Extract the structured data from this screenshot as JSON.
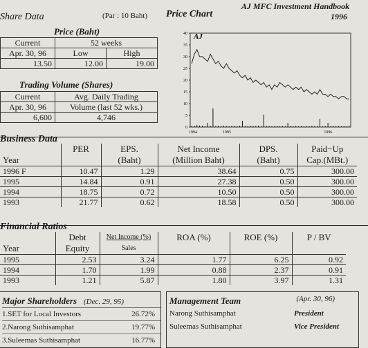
{
  "handbook": {
    "line1": "AJ MFC Investment Handbook",
    "line2": "1996"
  },
  "share": {
    "title": "Share Data",
    "par": "(Par : 10 Baht)"
  },
  "price": {
    "title": "Price (Baht)",
    "current": "Current",
    "date": "Apr. 30, 96",
    "weeks": "52 weeks",
    "low": "Low",
    "high": "High",
    "current_val": "13.50",
    "low_val": "12.00",
    "high_val": "19.00"
  },
  "volume": {
    "title": "Trading Volume (Shares)",
    "current": "Current",
    "date": "Apr. 30, 96",
    "avg1": "Avg. Daily Trading",
    "avg2": "Volume (last 52 wks.)",
    "current_val": "6,600",
    "avg_val": "4,746"
  },
  "chart_title": "Price Chart",
  "chart_data": {
    "type": "line",
    "title": "Price Chart",
    "series_label": "AJ",
    "ylim": [
      0,
      40
    ],
    "yticks": [
      "0",
      "5",
      "10",
      "15",
      "20",
      "25",
      "30",
      "35",
      "40"
    ],
    "xticks": [
      "1994",
      "1995",
      "1996"
    ],
    "price": [
      27,
      31,
      33,
      30,
      30,
      29,
      28,
      31,
      29,
      27,
      28,
      26,
      25,
      27,
      25,
      24,
      23,
      24,
      22,
      21,
      22,
      20,
      21,
      19,
      20,
      19,
      18,
      19,
      17,
      18,
      16,
      18,
      17,
      19,
      18,
      17,
      18,
      17,
      16,
      17,
      16,
      17,
      15,
      16,
      15,
      14,
      15,
      14,
      16,
      14,
      14,
      13,
      14,
      13,
      13,
      12,
      13,
      13,
      12,
      12
    ],
    "volume": [
      0.5,
      0.6,
      1,
      0.8,
      0.7,
      0.5,
      2,
      0.6,
      9,
      0.4,
      0.6,
      0.5,
      0.7,
      0.5,
      0.4,
      0.6,
      0.5,
      0.4,
      0.6,
      3,
      0.5,
      0.4,
      0.6,
      0.5,
      0.5,
      0.7,
      0.4,
      6,
      0.6,
      0.5,
      0.4,
      0.5,
      0.6,
      0.4,
      0.5,
      0.4,
      2,
      0.5,
      0.4,
      0.6,
      0.4,
      0.5,
      0.4,
      0.5,
      0.4,
      0.6,
      0.4,
      0.5,
      4,
      0.4,
      0.5,
      2,
      0.4,
      0.5,
      0.4,
      0.5,
      0.4,
      0.5,
      0.4,
      0.5
    ]
  },
  "business": {
    "title": "Business Data",
    "headers": [
      [
        "",
        "PER",
        "EPS.",
        "Net Income",
        "DPS.",
        "Paid−Up"
      ],
      [
        "Year",
        "",
        "(Baht)",
        "(Million Baht)",
        "(Baht)",
        "Cap.(MBt.)"
      ]
    ],
    "rows": [
      [
        "1996 F",
        "10.47",
        "1.29",
        "38.64",
        "0.75",
        "300.00"
      ],
      [
        "1995",
        "14.84",
        "0.91",
        "27.38",
        "0.50",
        "300.00"
      ],
      [
        "1994",
        "18.75",
        "0.72",
        "10.50",
        "0.50",
        "300.00"
      ],
      [
        "1993",
        "21.77",
        "0.62",
        "18.58",
        "0.50",
        "300.00"
      ]
    ]
  },
  "ratios": {
    "title": "Financial Ratios",
    "h_debt": "Debt",
    "h_equity": "Equity",
    "h_ni": "Net Income (%)",
    "h_sales": "Sales",
    "h_roa": "ROA (%)",
    "h_roe": "ROE (%)",
    "h_pbv": "P / BV",
    "h_year": "Year",
    "rows": [
      [
        "1995",
        "2.53",
        "3.24",
        "1.77",
        "6.25",
        "0.92"
      ],
      [
        "1994",
        "1.70",
        "1.99",
        "0.88",
        "2.37",
        "0.91"
      ],
      [
        "1993",
        "1.21",
        "5.87",
        "1.80",
        "3.97",
        "1.31"
      ]
    ]
  },
  "shareholders": {
    "title": "Major Shareholders",
    "date": "(Dec. 29, 95)",
    "items": [
      {
        "name": "1.SET for Local Investors",
        "pct": "26.72%"
      },
      {
        "name": "2.Narong Suthisamphat",
        "pct": "19.77%"
      },
      {
        "name": "3.Suleemas Suthisamphat",
        "pct": "16.77%"
      }
    ]
  },
  "management": {
    "title": "Management Team",
    "date": "(Apr. 30, 96)",
    "items": [
      {
        "name": "Narong Suthisamphat",
        "role": "President"
      },
      {
        "name": "Suleemas Suthisamphat",
        "role": "Vice President"
      }
    ]
  }
}
